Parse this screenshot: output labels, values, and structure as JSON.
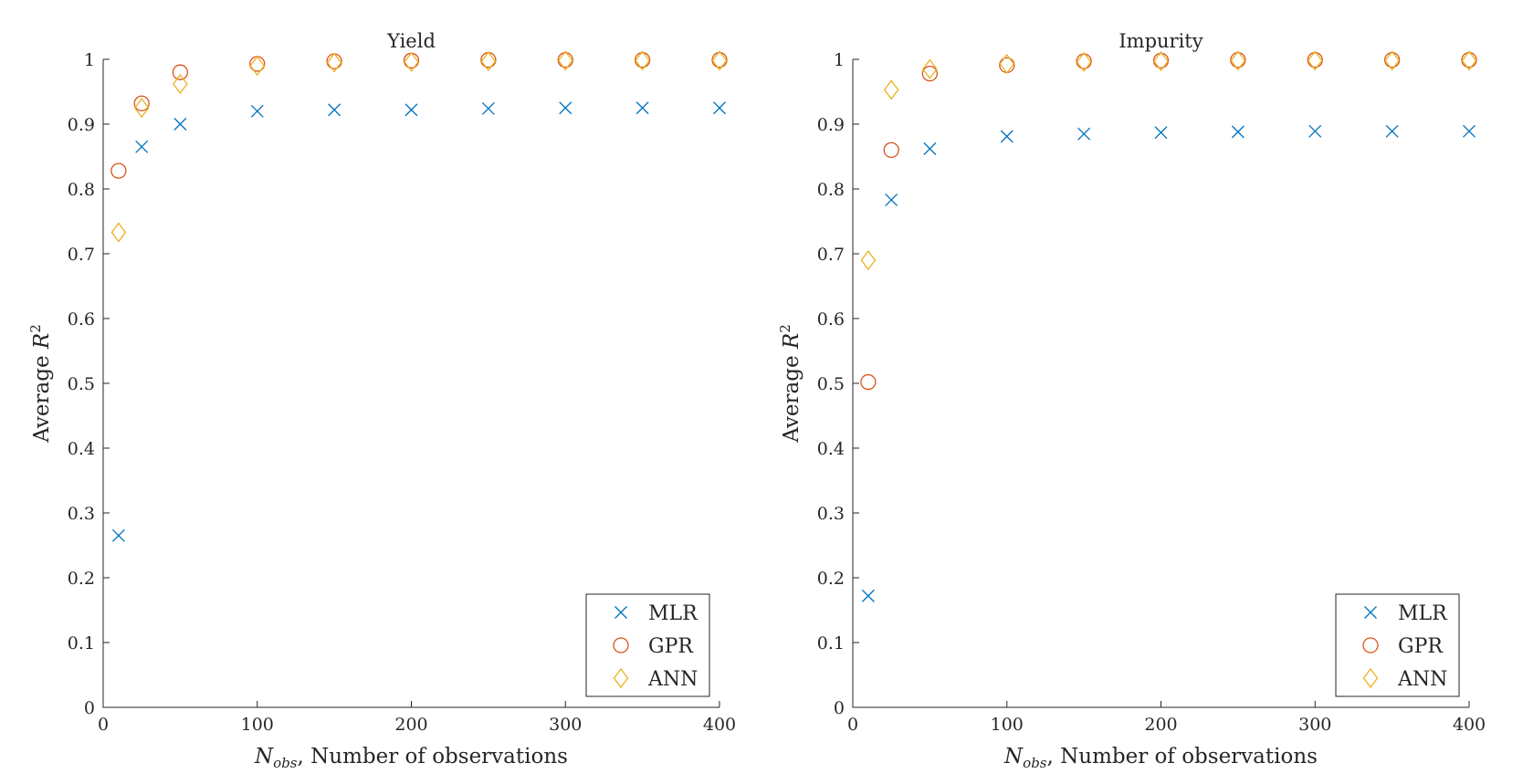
{
  "colors": {
    "MLR": "#0072BD",
    "GPR": "#D95319",
    "ANN": "#EDB120",
    "axis": "#262626"
  },
  "chart_data": [
    {
      "type": "scatter",
      "title": "Yield",
      "xlabel_main": "N",
      "xlabel_sub": "obs",
      "xlabel_rest": ", Number of observations",
      "ylabel_text": "Average ",
      "ylabel_var": "R",
      "ylabel_sup": "2",
      "xlim": [
        0,
        400
      ],
      "ylim": [
        0,
        1
      ],
      "xticks": [
        0,
        100,
        200,
        300,
        400
      ],
      "yticks": [
        0,
        0.1,
        0.2,
        0.3,
        0.4,
        0.5,
        0.6,
        0.7,
        0.8,
        0.9,
        1
      ],
      "x": [
        10,
        25,
        50,
        100,
        150,
        200,
        250,
        300,
        350,
        400
      ],
      "series": [
        {
          "name": "MLR",
          "marker": "x",
          "values": [
            0.265,
            0.865,
            0.9,
            0.92,
            0.922,
            0.922,
            0.924,
            0.925,
            0.925,
            0.925
          ]
        },
        {
          "name": "GPR",
          "marker": "circle",
          "values": [
            0.828,
            0.932,
            0.98,
            0.993,
            0.997,
            0.998,
            0.999,
            0.999,
            0.999,
            0.999
          ]
        },
        {
          "name": "ANN",
          "marker": "diamond",
          "values": [
            0.733,
            0.925,
            0.962,
            0.99,
            0.995,
            0.996,
            0.997,
            0.998,
            0.998,
            0.998
          ]
        }
      ],
      "legend": {
        "position": "bottom-right",
        "entries": [
          "MLR",
          "GPR",
          "ANN"
        ]
      }
    },
    {
      "type": "scatter",
      "title": "Impurity",
      "xlabel_main": "N",
      "xlabel_sub": "obs",
      "xlabel_rest": ", Number of observations",
      "ylabel_text": "Average ",
      "ylabel_var": "R",
      "ylabel_sup": "2",
      "xlim": [
        0,
        400
      ],
      "ylim": [
        0,
        1
      ],
      "xticks": [
        0,
        100,
        200,
        300,
        400
      ],
      "yticks": [
        0,
        0.1,
        0.2,
        0.3,
        0.4,
        0.5,
        0.6,
        0.7,
        0.8,
        0.9,
        1
      ],
      "x": [
        10,
        25,
        50,
        100,
        150,
        200,
        250,
        300,
        350,
        400
      ],
      "series": [
        {
          "name": "MLR",
          "marker": "x",
          "values": [
            0.172,
            0.783,
            0.862,
            0.881,
            0.885,
            0.887,
            0.888,
            0.889,
            0.889,
            0.889
          ]
        },
        {
          "name": "GPR",
          "marker": "circle",
          "values": [
            0.502,
            0.86,
            0.978,
            0.991,
            0.997,
            0.998,
            0.999,
            0.999,
            0.999,
            0.999
          ]
        },
        {
          "name": "ANN",
          "marker": "diamond",
          "values": [
            0.69,
            0.953,
            0.985,
            0.993,
            0.996,
            0.997,
            0.998,
            0.998,
            0.998,
            0.998
          ]
        }
      ],
      "legend": {
        "position": "bottom-right",
        "entries": [
          "MLR",
          "GPR",
          "ANN"
        ]
      }
    }
  ]
}
